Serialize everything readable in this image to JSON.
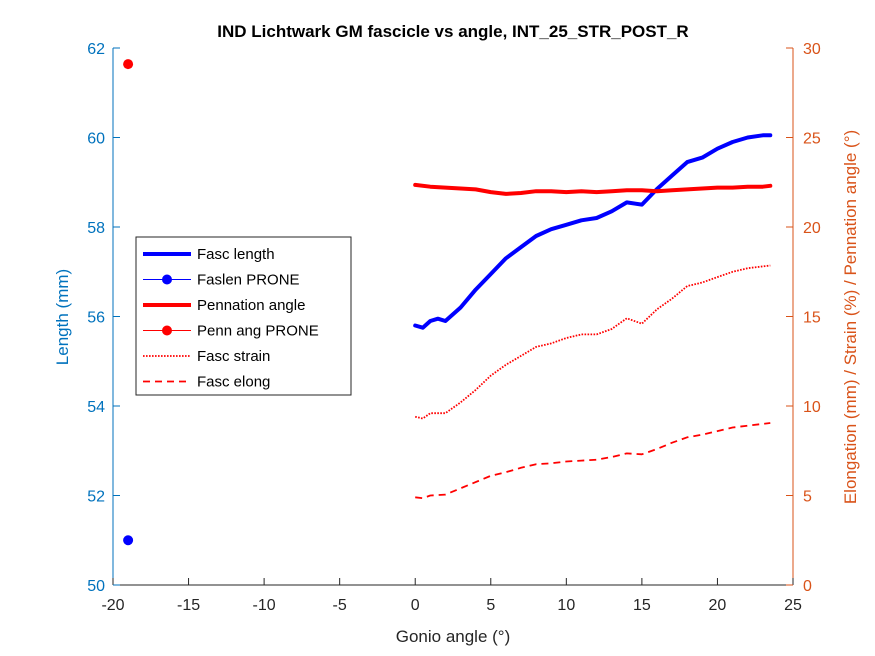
{
  "chart_data": {
    "type": "line",
    "title": "IND Lichtwark GM fascicle vs angle, INT_25_STR_POST_R",
    "xlabel": "Gonio angle (°)",
    "ylabel_left": "Length (mm)",
    "ylabel_right": "Elongation (mm) / Strain (%) / Pennation angle (°)",
    "xlim": [
      -20,
      25
    ],
    "ylim_left": [
      50,
      62
    ],
    "ylim_right": [
      0,
      30
    ],
    "xticks": [
      "-20",
      "-15",
      "-10",
      "-5",
      "0",
      "5",
      "10",
      "15",
      "20",
      "25"
    ],
    "yticks_left": [
      "50",
      "52",
      "54",
      "56",
      "58",
      "60",
      "62"
    ],
    "yticks_right": [
      "0",
      "5",
      "10",
      "15",
      "20",
      "25",
      "30"
    ],
    "left_axis_color": "#0072BD",
    "right_axis_color": "#D95319",
    "legend_position": "center-left",
    "series": [
      {
        "name": "Fasc length",
        "axis": "left",
        "color": "#0000FF",
        "style": "solid-thick",
        "x": [
          0,
          0.5,
          1,
          1.5,
          2,
          3,
          4,
          5,
          6,
          7,
          8,
          9,
          10,
          11,
          12,
          13,
          14,
          15,
          16,
          17,
          18,
          19,
          20,
          21,
          22,
          23,
          23.5
        ],
        "y": [
          55.8,
          55.75,
          55.9,
          55.95,
          55.9,
          56.2,
          56.6,
          56.95,
          57.3,
          57.55,
          57.8,
          57.95,
          58.05,
          58.15,
          58.2,
          58.35,
          58.55,
          58.5,
          58.85,
          59.15,
          59.45,
          59.55,
          59.75,
          59.9,
          60.0,
          60.05,
          60.05
        ]
      },
      {
        "name": "Faslen PRONE",
        "axis": "left",
        "color": "#0000FF",
        "style": "marker",
        "x": [
          -19
        ],
        "y": [
          51
        ]
      },
      {
        "name": "Pennation angle",
        "axis": "right",
        "color": "#FF0000",
        "style": "solid-thick",
        "x": [
          0,
          1,
          2,
          3,
          4,
          5,
          6,
          7,
          8,
          9,
          10,
          11,
          12,
          13,
          14,
          15,
          16,
          17,
          18,
          19,
          20,
          21,
          22,
          23,
          23.5
        ],
        "y": [
          22.35,
          22.25,
          22.2,
          22.15,
          22.1,
          21.95,
          21.85,
          21.9,
          22.0,
          22.0,
          21.95,
          22.0,
          21.95,
          22.0,
          22.05,
          22.05,
          22.0,
          22.05,
          22.1,
          22.15,
          22.2,
          22.2,
          22.25,
          22.25,
          22.3
        ]
      },
      {
        "name": "Penn ang PRONE",
        "axis": "right",
        "color": "#FF0000",
        "style": "marker",
        "x": [
          -19
        ],
        "y": [
          29.1
        ]
      },
      {
        "name": "Fasc strain",
        "axis": "right",
        "color": "#FF0000",
        "style": "dotted",
        "x": [
          0,
          0.5,
          1,
          2,
          3,
          4,
          5,
          6,
          7,
          8,
          9,
          10,
          11,
          12,
          13,
          14,
          15,
          16,
          17,
          18,
          19,
          20,
          21,
          22,
          23,
          23.5
        ],
        "y": [
          9.4,
          9.3,
          9.6,
          9.6,
          10.2,
          10.9,
          11.7,
          12.3,
          12.8,
          13.3,
          13.5,
          13.8,
          14.0,
          14.0,
          14.3,
          14.9,
          14.6,
          15.4,
          16.0,
          16.7,
          16.9,
          17.2,
          17.5,
          17.7,
          17.8,
          17.85
        ]
      },
      {
        "name": "Fasc elong",
        "axis": "right",
        "color": "#FF0000",
        "style": "dashed",
        "x": [
          0,
          0.5,
          1,
          2,
          3,
          4,
          5,
          6,
          7,
          8,
          9,
          10,
          11,
          12,
          13,
          14,
          15,
          16,
          17,
          18,
          19,
          20,
          21,
          22,
          23,
          23.5
        ],
        "y": [
          4.9,
          4.85,
          5.0,
          5.05,
          5.4,
          5.75,
          6.1,
          6.3,
          6.55,
          6.75,
          6.8,
          6.9,
          6.95,
          7.0,
          7.15,
          7.35,
          7.3,
          7.6,
          7.95,
          8.25,
          8.4,
          8.6,
          8.8,
          8.9,
          9.0,
          9.05
        ]
      }
    ]
  }
}
